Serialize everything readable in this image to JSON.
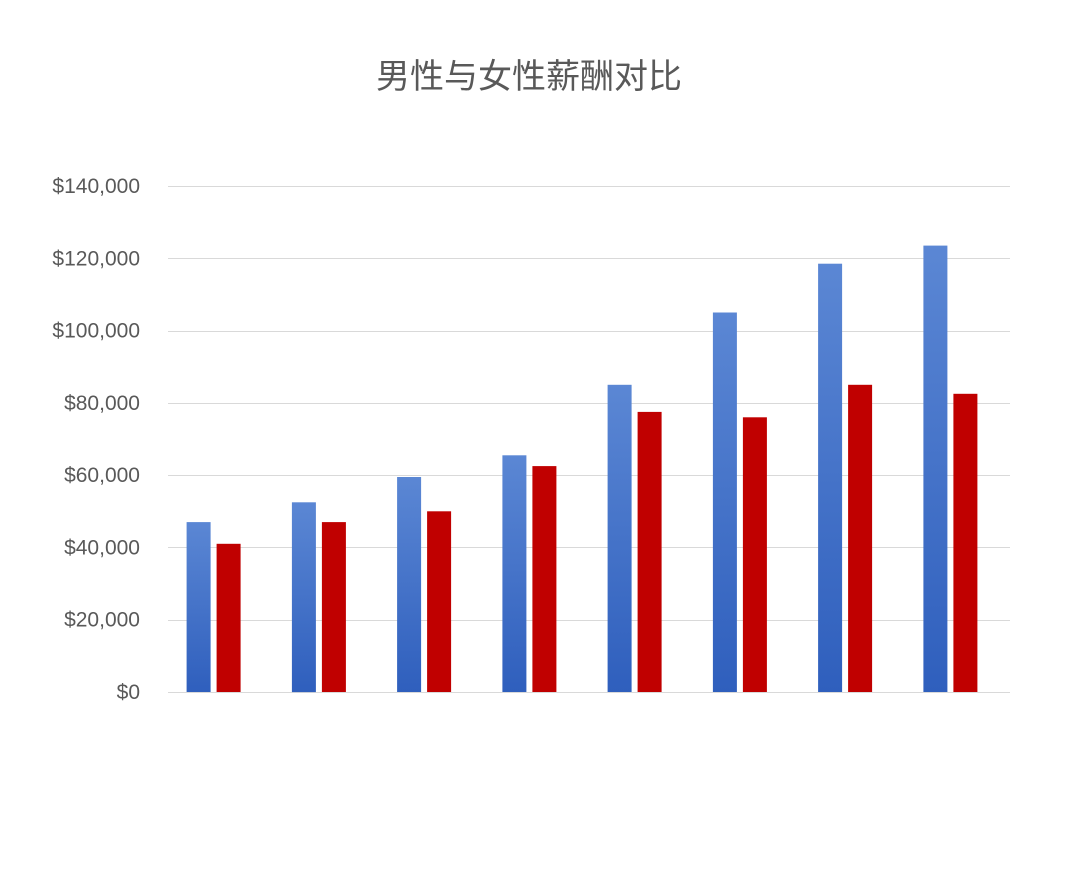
{
  "chart_data": {
    "type": "bar",
    "title": "男性与女性薪酬对比",
    "xlabel": "",
    "ylabel": "",
    "ylim": [
      0,
      140000
    ],
    "y_ticks": [
      0,
      20000,
      40000,
      60000,
      80000,
      100000,
      120000,
      140000
    ],
    "y_tick_labels": [
      "$0",
      "$20,000",
      "$40,000",
      "$60,000",
      "$80,000",
      "$100,000",
      "$120,000",
      "$140,000"
    ],
    "grid": true,
    "legend": "none",
    "categories": [
      "",
      "",
      "",
      "",
      "",
      "",
      "",
      ""
    ],
    "series": [
      {
        "color_top": "#5b87d4",
        "color_bottom": "#2f5fbd",
        "values": [
          47000,
          52500,
          59500,
          65500,
          85000,
          105000,
          118500,
          123500
        ]
      },
      {
        "color_top": "#c00000",
        "color_bottom": "#c00000",
        "values": [
          41000,
          47000,
          50000,
          62500,
          77500,
          76000,
          85000,
          82500
        ]
      }
    ]
  }
}
